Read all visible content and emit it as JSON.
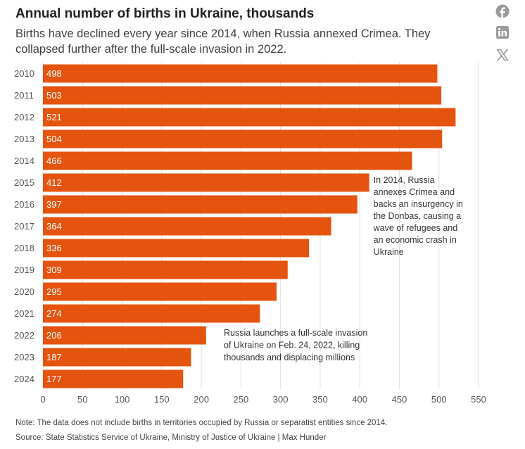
{
  "header": {
    "title": "Annual number of births in Ukraine, thousands",
    "subtitle": "Births have declined every year since 2014, when Russia annexed Crimea. They collapsed further after the full-scale invasion in 2022."
  },
  "share": {
    "facebook": "facebook-icon",
    "linkedin": "linkedin-icon",
    "x": "x-icon"
  },
  "colors": {
    "bar": "#E5540F",
    "bar_label": "#ffffff",
    "grid": "#e0e0e0",
    "axis_text": "#555555",
    "icon": "#9a9a9a"
  },
  "chart_data": {
    "type": "bar",
    "orientation": "horizontal",
    "categories": [
      "2010",
      "2011",
      "2012",
      "2013",
      "2014",
      "2015",
      "2016",
      "2017",
      "2018",
      "2019",
      "2020",
      "2021",
      "2022",
      "2023",
      "2024"
    ],
    "values": [
      498,
      503,
      521,
      504,
      466,
      412,
      397,
      364,
      336,
      309,
      295,
      274,
      206,
      187,
      177
    ],
    "xlim": [
      0,
      550
    ],
    "xticks": [
      0,
      50,
      100,
      150,
      200,
      250,
      300,
      350,
      400,
      450,
      500,
      550
    ],
    "grid": true,
    "annotations": [
      {
        "category": "2015",
        "lines": [
          "In 2014, Russia",
          "annexes Crimea and",
          "backs an insurgency in",
          "the Donbas, causing a",
          "wave of refugees and",
          "an economic crash in",
          "Ukraine"
        ]
      },
      {
        "category": "2022",
        "lines": [
          "Russia launches a full-scale invasion",
          "of Ukraine on Feb. 24, 2022, killing",
          "thousands and displacing millions"
        ]
      }
    ]
  },
  "footer": {
    "note": "Note: The data does not include births in territories occupied by Russia or separatist entities since 2014.",
    "source": "Source: State Statistics Service of Ukraine, Ministry of Justice of Ukraine | Max Hunder"
  }
}
